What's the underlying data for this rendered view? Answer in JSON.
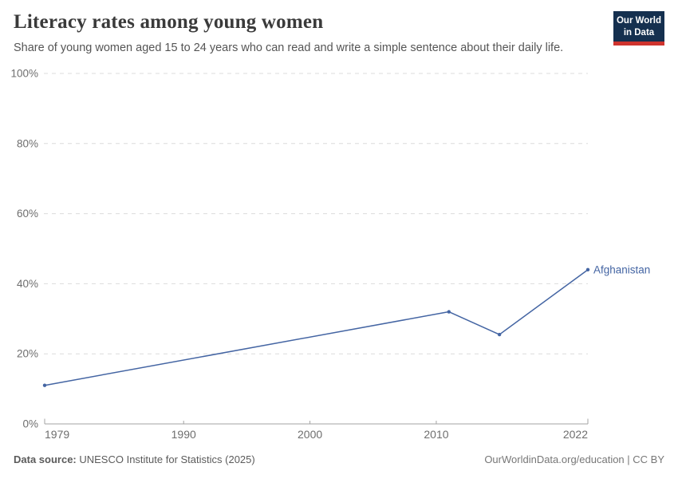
{
  "header": {
    "title": "Literacy rates among young women",
    "subtitle": "Share of young women aged 15 to 24 years who can read and write a simple sentence about their daily life."
  },
  "logo": {
    "line1": "Our World",
    "line2": "in Data"
  },
  "chart_data": {
    "type": "line",
    "title": "Literacy rates among young women",
    "xlabel": "",
    "ylabel": "",
    "x": [
      1979,
      2011,
      2015,
      2022
    ],
    "series": [
      {
        "name": "Afghanistan",
        "values": [
          11,
          32,
          25.5,
          44
        ]
      }
    ],
    "x_ticks": [
      1979,
      1990,
      2000,
      2010,
      2022
    ],
    "y_ticks": [
      0,
      20,
      40,
      60,
      80,
      100
    ],
    "y_unit": "%",
    "xlim": [
      1979,
      2022
    ],
    "ylim": [
      0,
      100
    ],
    "grid": "horizontal-dashed",
    "legend_position": "end-of-line-label"
  },
  "footer": {
    "source_label": "Data source:",
    "source_value": " UNESCO Institute for Statistics (2025)",
    "credit": "OurWorldinData.org/education | CC BY"
  },
  "colors": {
    "line": "#4465a3",
    "grid": "#dcdcdc",
    "axis": "#a3a3a3",
    "tick_text": "#6e6e6e",
    "title_text": "#3a3a3a",
    "subtitle_text": "#555555",
    "footer_text": "#5b5b5b",
    "logo_navy": "#15304f",
    "logo_red": "#cf342e"
  }
}
